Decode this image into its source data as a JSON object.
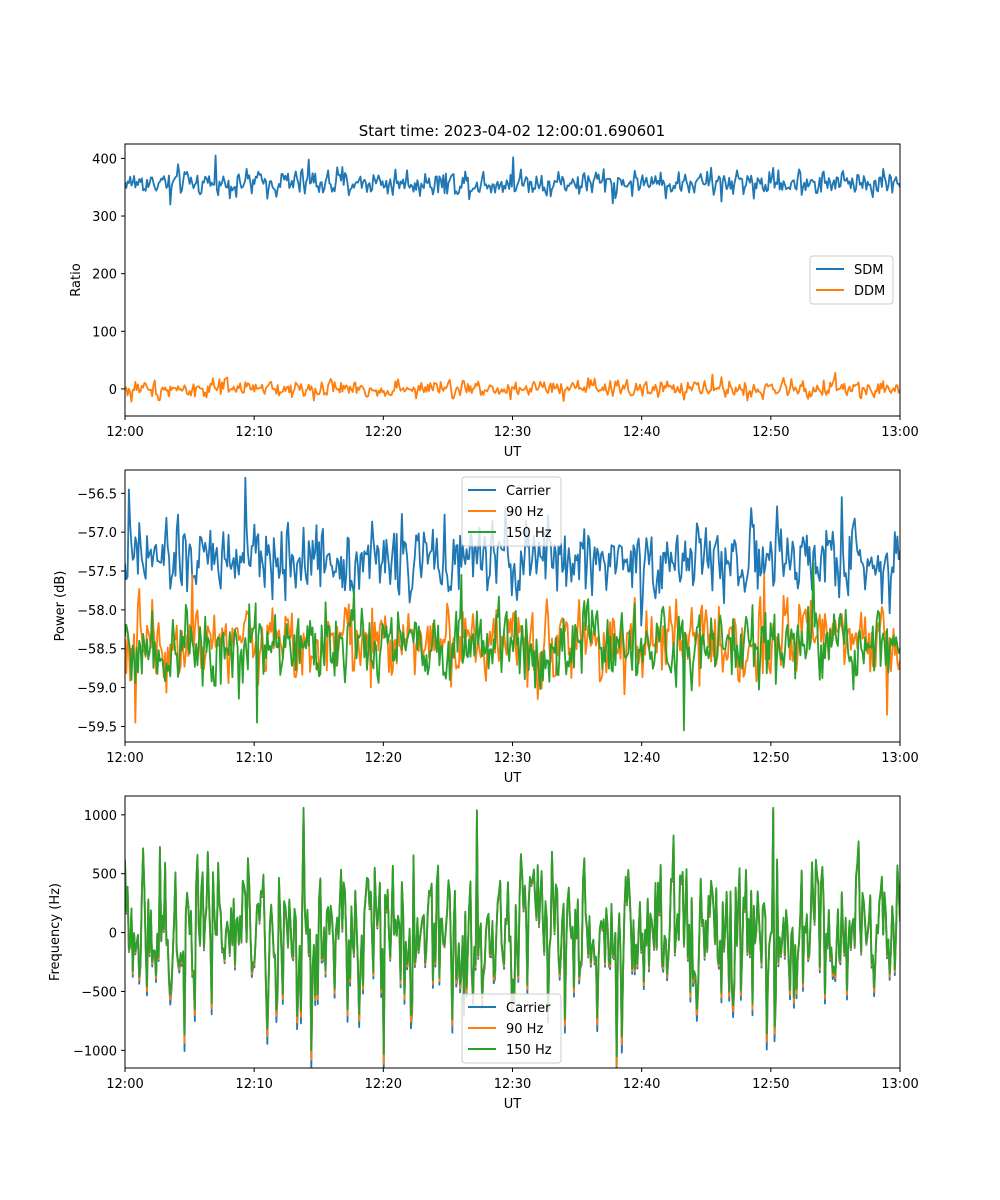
{
  "chart_data": [
    {
      "type": "line",
      "title": "Start time: 2023-04-02 12:00:01.690601",
      "xlabel": "UT",
      "ylabel": "Ratio",
      "xlim": [
        "12:00",
        "13:00"
      ],
      "ylim": [
        -47,
        425
      ],
      "x_ticks": [
        "12:00",
        "12:10",
        "12:20",
        "12:30",
        "12:40",
        "12:50",
        "13:00"
      ],
      "y_ticks": [
        0,
        100,
        200,
        300,
        400
      ],
      "legend": "center-right",
      "grid": false,
      "series": [
        {
          "name": "SDM",
          "color": "#1f77b4",
          "mean": 358,
          "noise": 15,
          "peaks": [
            [
              7,
              405
            ],
            [
              14.2,
              398
            ],
            [
              30.1,
              402
            ]
          ],
          "troughs": [
            [
              3.5,
              320
            ],
            [
              37.8,
              322
            ],
            [
              46.2,
              325
            ]
          ]
        },
        {
          "name": "DDM",
          "color": "#ff7f0e",
          "mean": 0,
          "noise": 10,
          "peaks": [
            [
              55,
              28
            ],
            [
              45.5,
              25
            ]
          ],
          "troughs": [
            [
              0.5,
              -22
            ],
            [
              34,
              -21
            ],
            [
              48.2,
              -20
            ]
          ]
        }
      ]
    },
    {
      "type": "line",
      "title": "",
      "xlabel": "UT",
      "ylabel": "Power (dB)",
      "xlim": [
        "12:00",
        "13:00"
      ],
      "ylim": [
        -59.7,
        -56.2
      ],
      "x_ticks": [
        "12:00",
        "12:10",
        "12:20",
        "12:30",
        "12:40",
        "12:50",
        "13:00"
      ],
      "y_ticks": [
        -56.5,
        -57.0,
        -57.5,
        -58.0,
        -58.5,
        -59.0,
        -59.5
      ],
      "y_tick_labels": [
        "−56.5",
        "−57.0",
        "−57.5",
        "−58.0",
        "−58.5",
        "−59.0",
        "−59.5"
      ],
      "legend": "upper-center",
      "grid": false,
      "series": [
        {
          "name": "Carrier",
          "color": "#1f77b4",
          "mean": -57.35,
          "noise": 0.3,
          "peaks": [
            [
              0.3,
              -56.45
            ],
            [
              9.3,
              -56.3
            ],
            [
              55.5,
              -56.55
            ]
          ],
          "troughs": [
            [
              40,
              -58.2
            ]
          ]
        },
        {
          "name": "90 Hz",
          "color": "#ff7f0e",
          "mean": -58.4,
          "noise": 0.32,
          "peaks": [
            [
              5.2,
              -57.55
            ],
            [
              49.5,
              -57.55
            ]
          ],
          "troughs": [
            [
              0.8,
              -59.45
            ],
            [
              59,
              -59.35
            ]
          ]
        },
        {
          "name": "150 Hz",
          "color": "#2ca02c",
          "mean": -58.45,
          "noise": 0.32,
          "peaks": [
            [
              26,
              -57.55
            ],
            [
              53.3,
              -57.4
            ]
          ],
          "troughs": [
            [
              43.3,
              -59.55
            ],
            [
              10.2,
              -59.45
            ]
          ]
        }
      ]
    },
    {
      "type": "line",
      "title": "",
      "xlabel": "UT",
      "ylabel": "Frequency (Hz)",
      "xlim": [
        "12:00",
        "13:00"
      ],
      "ylim": [
        -1150,
        1160
      ],
      "x_ticks": [
        "12:00",
        "12:10",
        "12:20",
        "12:30",
        "12:40",
        "12:50",
        "13:00"
      ],
      "y_ticks": [
        1000,
        500,
        0,
        -500,
        -1000
      ],
      "y_tick_labels": [
        "1000",
        "500",
        "0",
        "−500",
        "−1000"
      ],
      "legend": "lower-center",
      "grid": false,
      "series": [
        {
          "name": "Carrier",
          "color": "#1f77b4",
          "offset": -80
        },
        {
          "name": "90 Hz",
          "color": "#ff7f0e",
          "offset": -40
        },
        {
          "name": "150 Hz",
          "color": "#2ca02c",
          "offset": 0,
          "noise": 420,
          "peaks": [
            [
              13.8,
              1060
            ],
            [
              50.2,
              1060
            ],
            [
              27.2,
              1040
            ]
          ],
          "troughs": [
            [
              38.1,
              -1050
            ],
            [
              20,
              -1030
            ],
            [
              14.4,
              -1000
            ]
          ]
        }
      ]
    }
  ]
}
